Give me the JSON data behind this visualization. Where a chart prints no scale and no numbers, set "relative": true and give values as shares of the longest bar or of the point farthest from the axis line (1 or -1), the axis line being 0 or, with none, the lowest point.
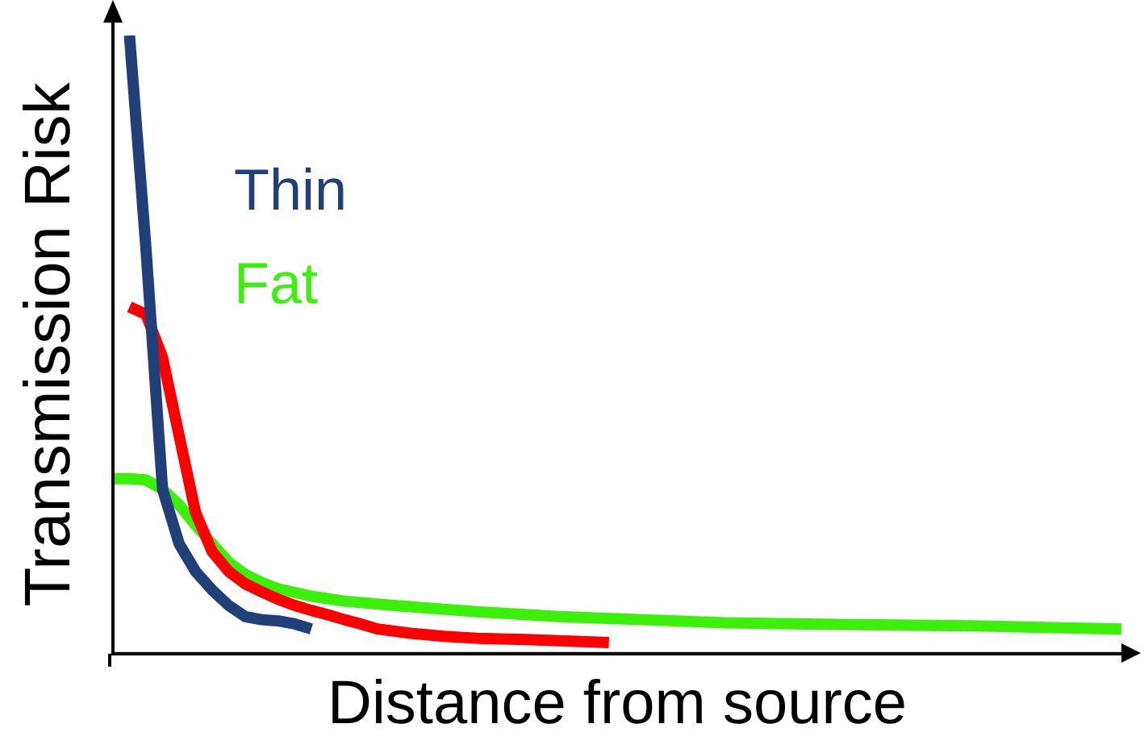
{
  "chart_data": {
    "type": "line",
    "relative": true,
    "xlabel": "Distance from source",
    "ylabel": "Transmission Risk",
    "legend": "top left",
    "grid": false,
    "marker": "none",
    "line_style": "solid",
    "categories": [
      null,
      null,
      null,
      null,
      null,
      null,
      null,
      null,
      null,
      null,
      null,
      null,
      null,
      null,
      null,
      null,
      null,
      null,
      null,
      null,
      null,
      null,
      null,
      null,
      null,
      null,
      null,
      null,
      null,
      null,
      null,
      null,
      null,
      null,
      null,
      null,
      null,
      null,
      null,
      null,
      null,
      null,
      null,
      null,
      null,
      null,
      null,
      null,
      null,
      null,
      null,
      null,
      null,
      null,
      null,
      null,
      null,
      null,
      null,
      null,
      null,
      null
    ],
    "series": [
      {
        "name": "Thin",
        "color": "#21407a",
        "values": [
          null,
          1.0,
          0.654,
          0.266,
          0.178,
          0.133,
          0.103,
          0.078,
          0.06,
          0.055,
          0.053,
          0.048,
          0.04,
          null,
          null,
          null,
          null,
          null,
          null,
          null,
          null,
          null,
          null,
          null,
          null,
          null,
          null,
          null,
          null,
          null,
          null,
          null,
          null,
          null,
          null,
          null,
          null,
          null,
          null,
          null,
          null,
          null,
          null,
          null,
          null,
          null,
          null,
          null,
          null,
          null,
          null,
          null,
          null,
          null,
          null,
          null,
          null,
          null,
          null,
          null,
          null,
          null
        ]
      },
      {
        "color": "#ff0000",
        "values": [
          null,
          0.561,
          0.549,
          0.479,
          0.353,
          0.228,
          0.165,
          0.133,
          0.113,
          0.1,
          0.088,
          0.078,
          0.07,
          0.063,
          0.055,
          0.048,
          0.04,
          null,
          0.033,
          null,
          0.028,
          null,
          0.025,
          null,
          null,
          0.023,
          null,
          null,
          0.02,
          null,
          0.018,
          null,
          null,
          null,
          null,
          null,
          null,
          null,
          null,
          null,
          null,
          null,
          null,
          null,
          null,
          null,
          null,
          null,
          null,
          null,
          null,
          null,
          null,
          null,
          null,
          null,
          null,
          null,
          null,
          null,
          null,
          null
        ]
      },
      {
        "name": "Fat",
        "color": "#3cf00c",
        "values": [
          0.283,
          0.283,
          0.281,
          0.266,
          0.241,
          0.208,
          0.178,
          0.148,
          0.128,
          0.115,
          0.105,
          null,
          0.093,
          null,
          0.085,
          null,
          null,
          0.078,
          null,
          null,
          null,
          null,
          0.068,
          null,
          null,
          null,
          null,
          0.06,
          null,
          null,
          null,
          null,
          0.055,
          null,
          null,
          null,
          null,
          0.05,
          null,
          null,
          null,
          null,
          0.048,
          null,
          null,
          null,
          null,
          null,
          null,
          null,
          null,
          null,
          0.045,
          null,
          null,
          null,
          null,
          null,
          null,
          null,
          null,
          0.04
        ]
      }
    ]
  }
}
